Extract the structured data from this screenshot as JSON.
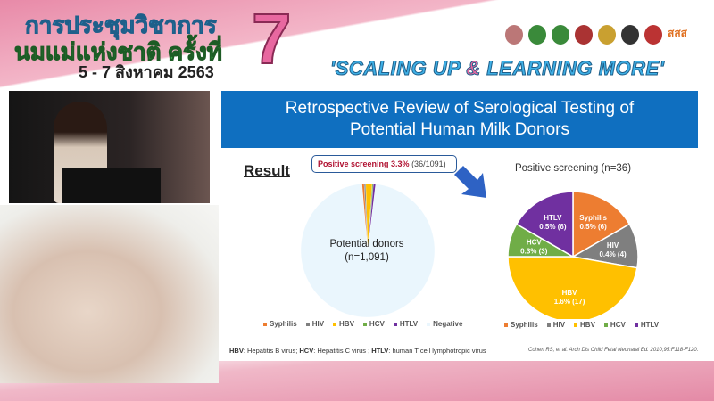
{
  "banner": {
    "thai_line1": "การประชุมวิชาการ",
    "thai_line2": "นมแม่แห่งชาติ ครั้งที่",
    "dates": "5 - 7 สิงหาคม 2563",
    "edition": "7",
    "slogan_part1": "'SCALING UP ",
    "slogan_amp": "&",
    "slogan_part2": " LEARNING MORE'",
    "logo_text": "สสส"
  },
  "slide": {
    "title_line1": "Retrospective Review of Serological Testing of",
    "title_line2": "Potential Human Milk Donors",
    "result_heading": "Result",
    "positive_label": "Positive screening 3.3%",
    "positive_fraction": "(36/1091)",
    "left_pie_label1": "Potential donors",
    "left_pie_label2": "(n=1,091)",
    "right_title": "Positive screening (n=36)",
    "footnote": {
      "hbv": "HBV",
      "hbv_text": ": Hepatitis B virus; ",
      "hcv": "HCV",
      "hcv_text": ": Hepatitis C virus ; ",
      "htlv": "HTLV",
      "htlv_text": ": human T cell lymphotropic virus"
    },
    "citation": "Cohen RS, et al. Arch Dis Child Fetal Neonatal Ed. 2010;95:F118-F120."
  },
  "chart_data": [
    {
      "type": "pie",
      "title": "",
      "categories": [
        "Syphilis",
        "HIV",
        "HBV",
        "HCV",
        "HTLV",
        "Negative"
      ],
      "values": [
        6,
        4,
        17,
        3,
        6,
        1055
      ],
      "colors": [
        "#ed7d31",
        "#7f7f7f",
        "#ffc000",
        "#70ad47",
        "#7030a0",
        "#eaf6fd"
      ],
      "legend": "bottom"
    },
    {
      "type": "pie",
      "title": "Positive screening (n=36)",
      "categories": [
        "Syphilis",
        "HIV",
        "HBV",
        "HCV",
        "HTLV"
      ],
      "values": [
        6,
        4,
        17,
        3,
        6
      ],
      "data_labels": [
        "0.5% (6)",
        "0.4% (4)",
        "1.6% (17)",
        "0.3% (3)",
        "0.5% (6)"
      ],
      "colors": [
        "#ed7d31",
        "#7f7f7f",
        "#ffc000",
        "#70ad47",
        "#7030a0"
      ],
      "legend": "bottom"
    }
  ]
}
